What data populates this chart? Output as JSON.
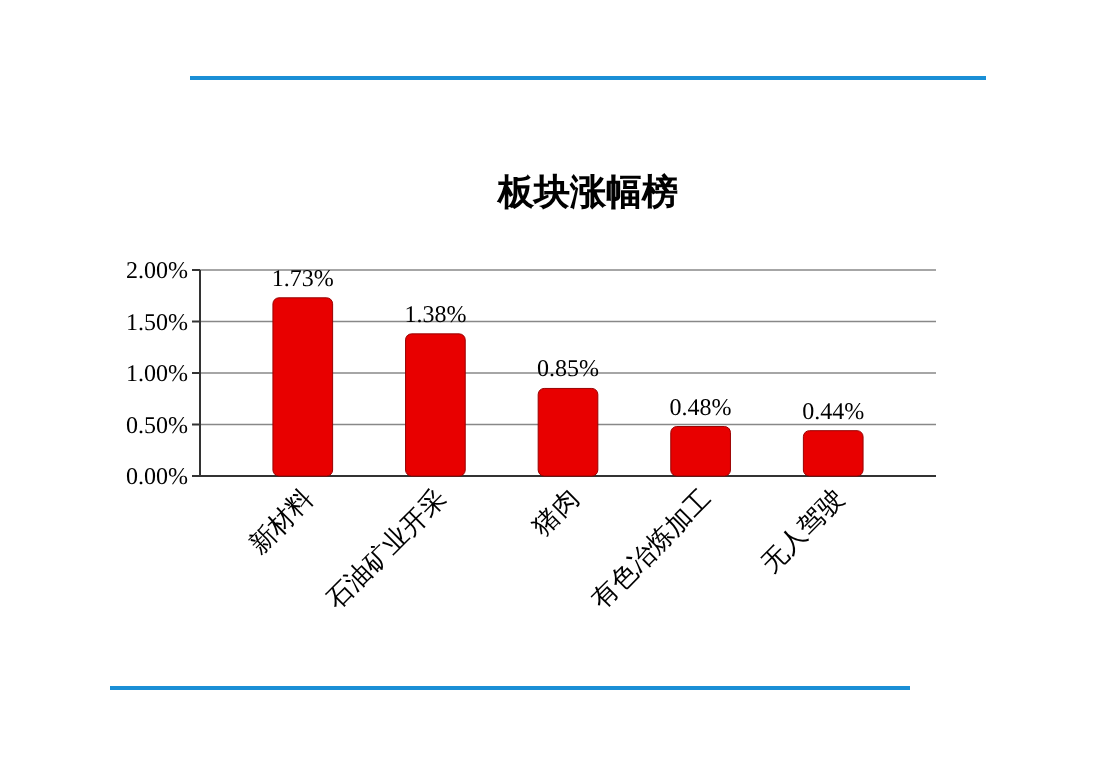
{
  "chart_data": {
    "type": "bar",
    "title": "板块涨幅榜",
    "categories": [
      "新材料",
      "石油矿业开采",
      "猪肉",
      "有色冶炼加工",
      "无人驾驶"
    ],
    "values": [
      1.73,
      1.38,
      0.85,
      0.48,
      0.44
    ],
    "color": "#e80000",
    "value_labels": [
      "1.73%",
      "1.38%",
      "0.85%",
      "0.48%",
      "0.44%"
    ],
    "ylim": [
      0,
      2
    ],
    "yticks": [
      {
        "value": 0,
        "label": "0.00%"
      },
      {
        "value": 0.5,
        "label": "0.50%"
      },
      {
        "value": 1,
        "label": "1.00%"
      },
      {
        "value": 1.5,
        "label": "1.50%"
      },
      {
        "value": 2,
        "label": "2.00%"
      }
    ],
    "grid": "y"
  }
}
